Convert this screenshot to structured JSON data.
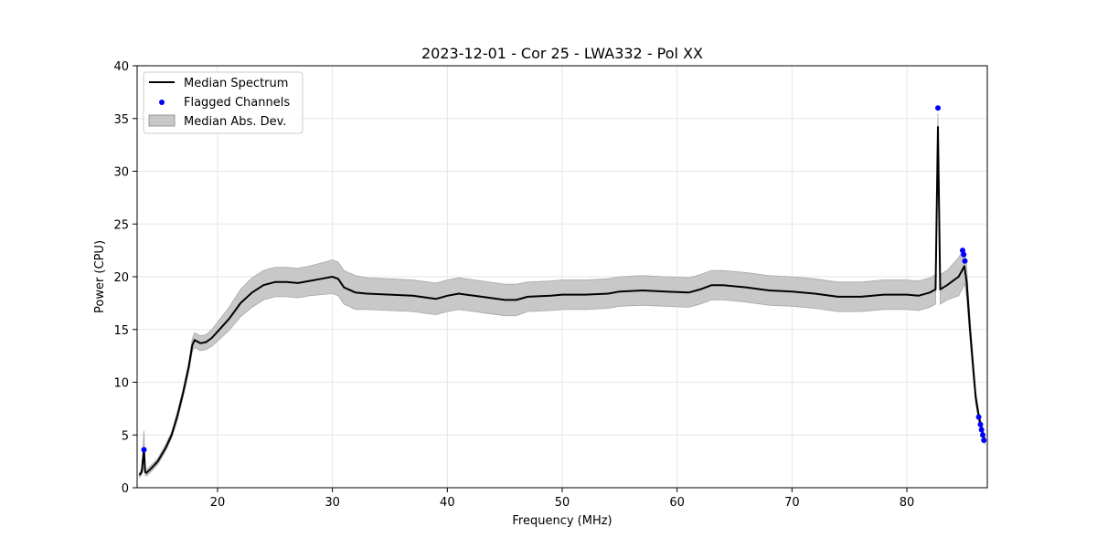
{
  "chart_data": {
    "type": "line",
    "title": "2023-12-01 - Cor 25 - LWA332 - Pol XX",
    "xlabel": "Frequency (MHz)",
    "ylabel": "Power (CPU)",
    "xlim": [
      13.0,
      87.0
    ],
    "ylim": [
      0,
      40
    ],
    "xticks": [
      20,
      30,
      40,
      50,
      60,
      70,
      80
    ],
    "yticks": [
      0,
      5,
      10,
      15,
      20,
      25,
      30,
      35,
      40
    ],
    "grid": true,
    "legend_position": "top-left",
    "legend": [
      "Median Spectrum",
      "Flagged Channels",
      "Median Abs. Dev."
    ],
    "series": [
      {
        "name": "Median Spectrum",
        "color": "#000000",
        "x": [
          13.2,
          13.4,
          13.6,
          13.7,
          13.8,
          14.2,
          14.8,
          15.5,
          16.0,
          16.5,
          17.0,
          17.5,
          17.8,
          18.0,
          18.5,
          19.0,
          19.5,
          20.0,
          21.0,
          22.0,
          23.0,
          24.0,
          25.0,
          26.0,
          27.0,
          28.0,
          29.0,
          30.0,
          30.5,
          31.0,
          32.0,
          33.0,
          35.0,
          37.0,
          39.0,
          40.0,
          41.0,
          43.0,
          45.0,
          46.0,
          47.0,
          49.0,
          50.0,
          52.0,
          54.0,
          55.0,
          57.0,
          59.0,
          61.0,
          62.0,
          63.0,
          64.0,
          66.0,
          68.0,
          70.0,
          72.0,
          74.0,
          76.0,
          78.0,
          80.0,
          81.0,
          82.0,
          82.5,
          82.7,
          82.9,
          83.5,
          84.0,
          84.5,
          84.8,
          85.0,
          85.2,
          85.5,
          85.8,
          86.0,
          86.3,
          86.6,
          86.8
        ],
        "y": [
          1.2,
          1.5,
          3.6,
          1.5,
          1.4,
          1.8,
          2.5,
          3.8,
          5.0,
          6.8,
          9.0,
          11.5,
          13.5,
          14.0,
          13.7,
          13.8,
          14.2,
          14.8,
          16.0,
          17.5,
          18.5,
          19.2,
          19.5,
          19.5,
          19.4,
          19.6,
          19.8,
          20.0,
          19.8,
          19.0,
          18.5,
          18.4,
          18.3,
          18.2,
          17.9,
          18.2,
          18.4,
          18.1,
          17.8,
          17.8,
          18.1,
          18.2,
          18.3,
          18.3,
          18.4,
          18.6,
          18.7,
          18.6,
          18.5,
          18.8,
          19.2,
          19.2,
          19.0,
          18.7,
          18.6,
          18.4,
          18.1,
          18.1,
          18.3,
          18.3,
          18.2,
          18.5,
          18.8,
          34.2,
          18.8,
          19.2,
          19.6,
          20.0,
          20.6,
          21.0,
          19.5,
          15.0,
          11.0,
          8.5,
          6.5,
          5.2,
          4.4
        ]
      },
      {
        "name": "Flagged Channels",
        "color": "#0000ff",
        "x": [
          13.6,
          82.7,
          84.85,
          84.95,
          85.05,
          86.25,
          86.4,
          86.5,
          86.6,
          86.7
        ],
        "y": [
          3.6,
          36.0,
          22.5,
          22.1,
          21.5,
          6.7,
          6.0,
          5.5,
          5.0,
          4.5
        ]
      },
      {
        "name": "Median Abs. Dev.",
        "color": "#c8c8c8",
        "x": [
          13.2,
          13.4,
          13.6,
          13.7,
          13.8,
          14.2,
          14.8,
          15.5,
          16.0,
          16.5,
          17.0,
          17.5,
          17.8,
          18.0,
          18.5,
          19.0,
          19.5,
          20.0,
          21.0,
          22.0,
          23.0,
          24.0,
          25.0,
          26.0,
          27.0,
          28.0,
          29.0,
          30.0,
          30.5,
          31.0,
          32.0,
          33.0,
          35.0,
          37.0,
          39.0,
          40.0,
          41.0,
          43.0,
          45.0,
          46.0,
          47.0,
          49.0,
          50.0,
          52.0,
          54.0,
          55.0,
          57.0,
          59.0,
          61.0,
          62.0,
          63.0,
          64.0,
          66.0,
          68.0,
          70.0,
          72.0,
          74.0,
          76.0,
          78.0,
          80.0,
          81.0,
          82.0,
          82.5,
          82.7,
          82.9,
          83.5,
          84.0,
          84.5,
          84.8,
          85.0,
          85.2,
          85.5,
          85.8,
          86.0,
          86.3,
          86.6,
          86.8
        ],
        "upper": [
          1.4,
          1.8,
          5.4,
          1.8,
          1.7,
          2.1,
          2.8,
          4.1,
          5.3,
          7.2,
          9.4,
          12.0,
          14.1,
          14.7,
          14.4,
          14.5,
          15.0,
          15.7,
          17.1,
          18.8,
          19.9,
          20.6,
          20.9,
          20.9,
          20.8,
          21.0,
          21.3,
          21.6,
          21.4,
          20.6,
          20.1,
          19.9,
          19.8,
          19.7,
          19.4,
          19.7,
          19.9,
          19.6,
          19.3,
          19.3,
          19.5,
          19.6,
          19.7,
          19.7,
          19.8,
          20.0,
          20.1,
          20.0,
          19.9,
          20.2,
          20.6,
          20.6,
          20.4,
          20.1,
          20.0,
          19.8,
          19.5,
          19.5,
          19.7,
          19.7,
          19.6,
          19.9,
          20.2,
          35.5,
          20.2,
          20.6,
          21.2,
          21.8,
          22.4,
          22.6,
          21.0,
          16.0,
          11.8,
          9.1,
          7.0,
          5.6,
          4.7
        ],
        "lower": [
          1.0,
          1.2,
          2.0,
          1.2,
          1.1,
          1.5,
          2.2,
          3.5,
          4.7,
          6.4,
          8.6,
          11.0,
          12.9,
          13.3,
          13.0,
          13.1,
          13.4,
          13.9,
          14.9,
          16.2,
          17.1,
          17.8,
          18.1,
          18.1,
          18.0,
          18.2,
          18.3,
          18.4,
          18.2,
          17.4,
          16.9,
          16.9,
          16.8,
          16.7,
          16.4,
          16.7,
          16.9,
          16.6,
          16.3,
          16.3,
          16.7,
          16.8,
          16.9,
          16.9,
          17.0,
          17.2,
          17.3,
          17.2,
          17.1,
          17.4,
          17.8,
          17.8,
          17.6,
          17.3,
          17.2,
          17.0,
          16.7,
          16.7,
          16.9,
          16.9,
          16.8,
          17.1,
          17.4,
          32.0,
          17.4,
          17.8,
          18.0,
          18.2,
          18.8,
          19.4,
          18.0,
          14.0,
          10.2,
          7.9,
          6.0,
          4.8,
          4.1
        ]
      }
    ]
  }
}
